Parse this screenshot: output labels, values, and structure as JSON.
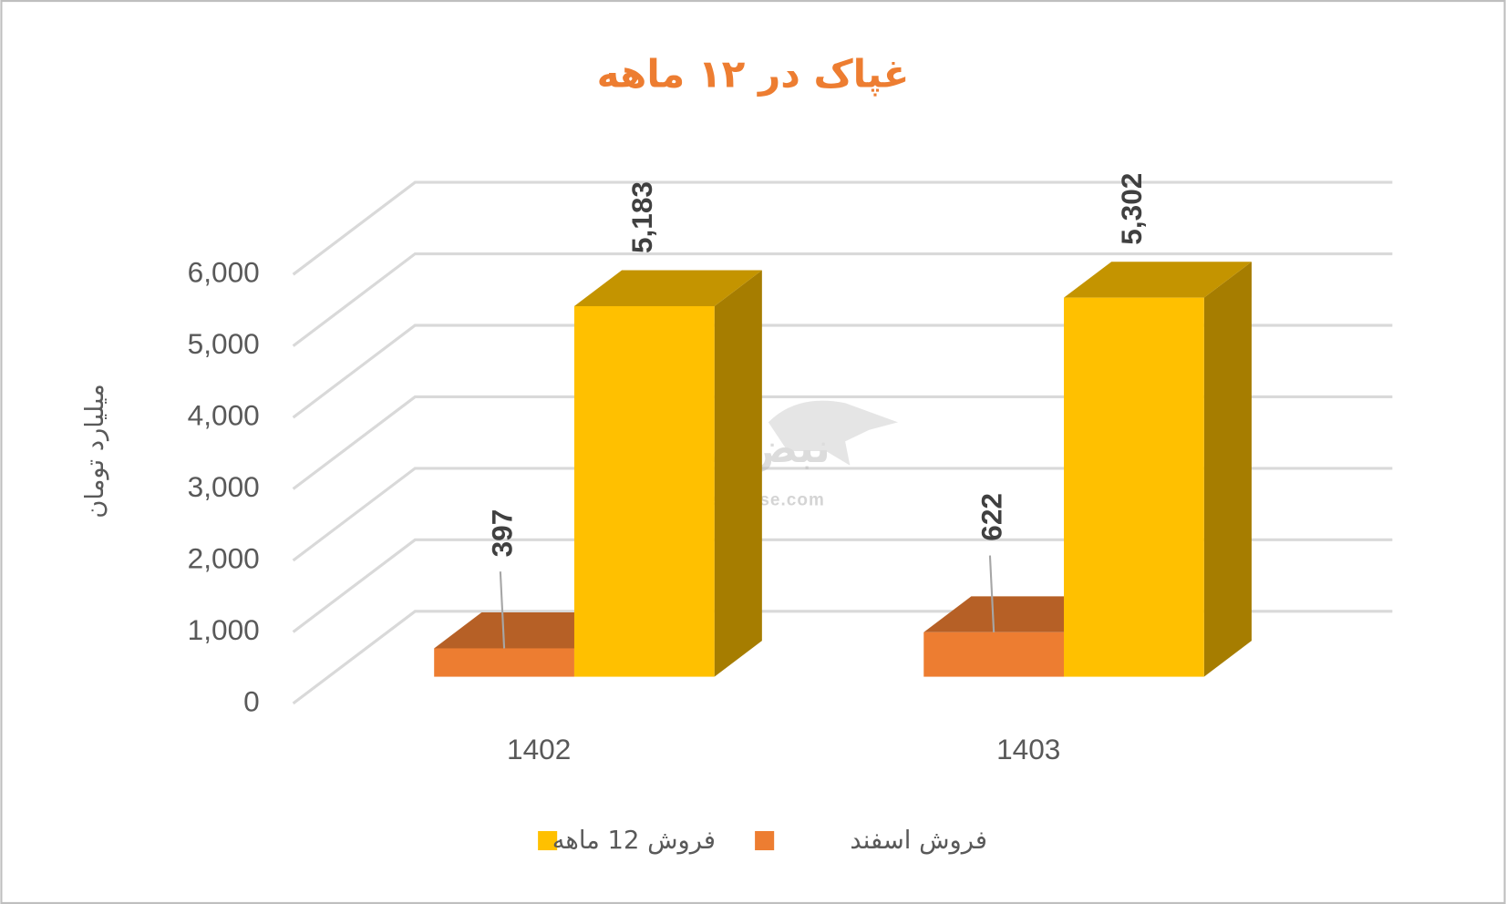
{
  "chart_data": {
    "type": "bar3d",
    "title": "غپاک در ۱۲ ماهه",
    "y_label": "میلیارد تومان",
    "categories": [
      "1402",
      "1403"
    ],
    "series": [
      {
        "name": "فروش اسفند",
        "color": "#ED7D31",
        "values": [
          397,
          622
        ]
      },
      {
        "name": "فروش 12  ماهه",
        "color": "#FFC000",
        "values": [
          5183,
          5302
        ],
        "value_labels": [
          "5,183",
          "5,302"
        ]
      }
    ],
    "ylim": [
      0,
      6000
    ],
    "yticks": [
      0,
      {
        "value": 1000,
        "label": "1,000"
      },
      {
        "value": 2000,
        "label": "2,000"
      },
      {
        "value": 3000,
        "label": "3,000"
      },
      {
        "value": 4000,
        "label": "4,000"
      },
      {
        "value": 5000,
        "label": "5,000"
      },
      {
        "value": 6000,
        "label": "6,000"
      }
    ],
    "grid": true,
    "legend": "bottom",
    "watermark": [
      "نبض بورس",
      "nabzebourse.com"
    ]
  }
}
